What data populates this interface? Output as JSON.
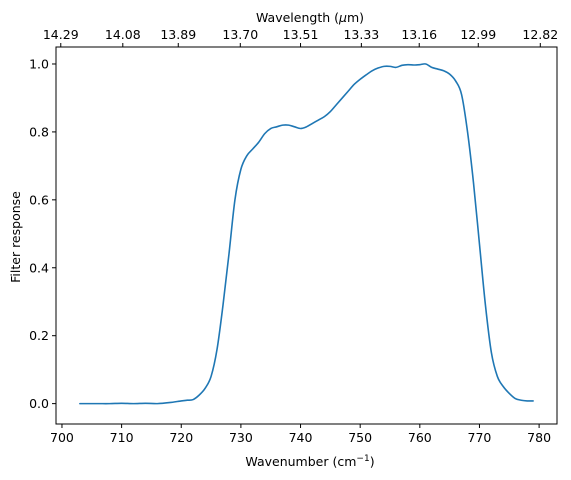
{
  "chart_data": {
    "type": "line",
    "xlabel": "Wavenumber (cm",
    "xlabel_sup": "−1",
    "xlabel_close": ")",
    "ylabel": "Filter response",
    "top_xlabel_pre": "Wavelength (",
    "top_xlabel_mu": "μ",
    "top_xlabel_post": "m)",
    "xlim": [
      699,
      783
    ],
    "ylim": [
      -0.06,
      1.05
    ],
    "x_ticks": [
      700,
      710,
      720,
      730,
      740,
      750,
      760,
      770,
      780
    ],
    "x_tick_labels": [
      "700",
      "710",
      "720",
      "730",
      "740",
      "750",
      "760",
      "770",
      "780"
    ],
    "y_ticks": [
      0.0,
      0.2,
      0.4,
      0.6,
      0.8,
      1.0
    ],
    "y_tick_labels": [
      "0.0",
      "0.2",
      "0.4",
      "0.6",
      "0.8",
      "1.0"
    ],
    "top_ticks": [
      699.8,
      710.2,
      719.5,
      729.9,
      740.0,
      750.2,
      759.9,
      769.8,
      780.2
    ],
    "top_tick_labels": [
      "14.29",
      "14.08",
      "13.89",
      "13.70",
      "13.51",
      "13.33",
      "13.16",
      "12.99",
      "12.82"
    ],
    "line_color": "#1f77b4",
    "series": [
      {
        "x": [
          703,
          706,
          708,
          710,
          712,
          714,
          716,
          718,
          720,
          721,
          722,
          723,
          724,
          725,
          726,
          727,
          728,
          729,
          730,
          731,
          732,
          733,
          734,
          735,
          736,
          737,
          738,
          739,
          740,
          741,
          742,
          743,
          744,
          745,
          746,
          747,
          748,
          749,
          750,
          751,
          752,
          753,
          754,
          755,
          756,
          757,
          758,
          759,
          760,
          761,
          762,
          763,
          764,
          765,
          766,
          767,
          768,
          769,
          770,
          771,
          772,
          773,
          774,
          775,
          776,
          777,
          778,
          779
        ],
        "values": [
          0.0,
          0.0,
          0.0,
          0.001,
          0.0,
          0.001,
          0.0,
          0.003,
          0.008,
          0.01,
          0.012,
          0.025,
          0.045,
          0.08,
          0.16,
          0.29,
          0.44,
          0.6,
          0.69,
          0.73,
          0.75,
          0.77,
          0.795,
          0.81,
          0.815,
          0.82,
          0.82,
          0.815,
          0.81,
          0.815,
          0.825,
          0.835,
          0.845,
          0.86,
          0.88,
          0.9,
          0.92,
          0.94,
          0.955,
          0.968,
          0.98,
          0.988,
          0.993,
          0.993,
          0.99,
          0.996,
          0.998,
          0.997,
          0.998,
          1.0,
          0.99,
          0.985,
          0.98,
          0.97,
          0.95,
          0.91,
          0.8,
          0.65,
          0.47,
          0.29,
          0.15,
          0.08,
          0.05,
          0.03,
          0.015,
          0.01,
          0.008,
          0.008
        ]
      }
    ]
  }
}
